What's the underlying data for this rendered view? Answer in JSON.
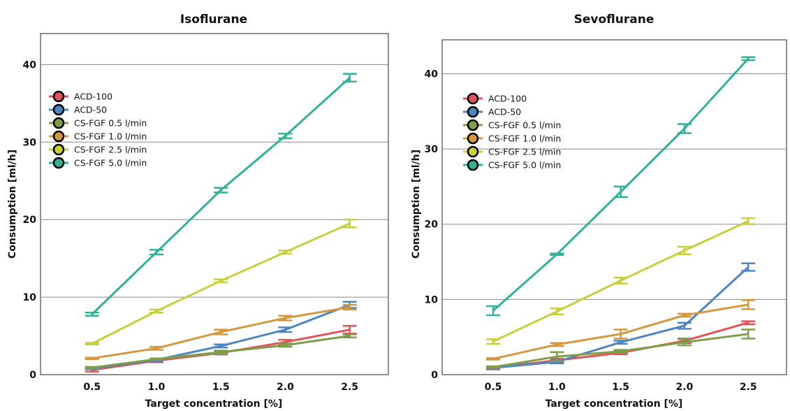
{
  "chart_data": [
    {
      "type": "line",
      "title": "Isoflurane",
      "xlabel": "Target concentration [%]",
      "ylabel": "Consumption [ml/h]",
      "x": [
        0.5,
        1.0,
        1.5,
        2.0,
        2.5
      ],
      "x_tick_labels": [
        "0.5",
        "1.0",
        "1.5",
        "2.0",
        "2.5"
      ],
      "y_ticks": [
        0,
        10,
        20,
        30,
        40
      ],
      "xlim": [
        0.1,
        2.8
      ],
      "ylim": [
        0,
        44
      ],
      "grid": "horizontal",
      "legend_position": "upper-left",
      "series": [
        {
          "name": "ACD-100",
          "color": "#e05356",
          "values": [
            0.6,
            1.8,
            2.8,
            4.2,
            5.8
          ],
          "err": [
            0.2,
            0.2,
            0.2,
            0.3,
            0.5
          ]
        },
        {
          "name": "ACD-50",
          "color": "#4f85c0",
          "values": [
            0.8,
            1.9,
            3.7,
            5.8,
            9.0
          ],
          "err": [
            0.1,
            0.2,
            0.2,
            0.3,
            0.4
          ]
        },
        {
          "name": "CS-FGF 0.5 l/min",
          "color": "#7f9e4b",
          "values": [
            0.9,
            2.0,
            2.9,
            3.8,
            5.0
          ],
          "err": [
            0.1,
            0.1,
            0.2,
            0.2,
            0.2
          ]
        },
        {
          "name": "CS-FGF 1.0 l/min",
          "color": "#d4983e",
          "values": [
            2.1,
            3.4,
            5.5,
            7.3,
            8.7
          ],
          "err": [
            0.1,
            0.2,
            0.3,
            0.3,
            0.3
          ]
        },
        {
          "name": "CS-FGF 2.5 l/min",
          "color": "#c9cf3c",
          "values": [
            4.0,
            8.2,
            12.1,
            15.8,
            19.5
          ],
          "err": [
            0.1,
            0.2,
            0.2,
            0.2,
            0.5
          ]
        },
        {
          "name": "CS-FGF 5.0 l/min",
          "color": "#31b296",
          "values": [
            7.8,
            15.8,
            23.8,
            30.8,
            38.3
          ],
          "err": [
            0.2,
            0.3,
            0.3,
            0.3,
            0.5
          ]
        }
      ]
    },
    {
      "type": "line",
      "title": "Sevoflurane",
      "xlabel": "Target concentration [%]",
      "ylabel": "Consumption [ml/h]",
      "x": [
        0.5,
        1.0,
        1.5,
        2.0,
        2.5
      ],
      "x_tick_labels": [
        "0.5",
        "1.0",
        "1.5",
        "2.0",
        "2.5"
      ],
      "y_ticks": [
        0,
        10,
        20,
        30,
        40
      ],
      "xlim": [
        0.1,
        2.8
      ],
      "ylim": [
        0,
        44.5
      ],
      "grid": "horizontal",
      "legend_position": "upper-left",
      "series": [
        {
          "name": "ACD-100",
          "color": "#e05356",
          "values": [
            0.9,
            1.9,
            2.9,
            4.5,
            6.9
          ],
          "err": [
            0.2,
            0.2,
            0.2,
            0.3,
            0.2
          ]
        },
        {
          "name": "ACD-50",
          "color": "#4f85c0",
          "values": [
            0.9,
            1.7,
            4.3,
            6.5,
            14.3
          ],
          "err": [
            0.1,
            0.2,
            0.2,
            0.4,
            0.5
          ]
        },
        {
          "name": "CS-FGF 0.5 l/min",
          "color": "#7f9e4b",
          "values": [
            1.0,
            2.4,
            3.1,
            4.3,
            5.4
          ],
          "err": [
            0.1,
            0.6,
            0.2,
            0.4,
            0.6
          ]
        },
        {
          "name": "CS-FGF 1.0 l/min",
          "color": "#d4983e",
          "values": [
            2.1,
            4.0,
            5.4,
            7.9,
            9.3
          ],
          "err": [
            0.1,
            0.2,
            0.6,
            0.2,
            0.6
          ]
        },
        {
          "name": "CS-FGF 2.5 l/min",
          "color": "#c9cf3c",
          "values": [
            4.4,
            8.4,
            12.5,
            16.5,
            20.4
          ],
          "err": [
            0.3,
            0.4,
            0.4,
            0.5,
            0.4
          ]
        },
        {
          "name": "CS-FGF 5.0 l/min",
          "color": "#31b296",
          "values": [
            8.5,
            16.0,
            24.3,
            32.7,
            42.0
          ],
          "err": [
            0.6,
            0.1,
            0.7,
            0.6,
            0.2
          ]
        }
      ]
    }
  ]
}
